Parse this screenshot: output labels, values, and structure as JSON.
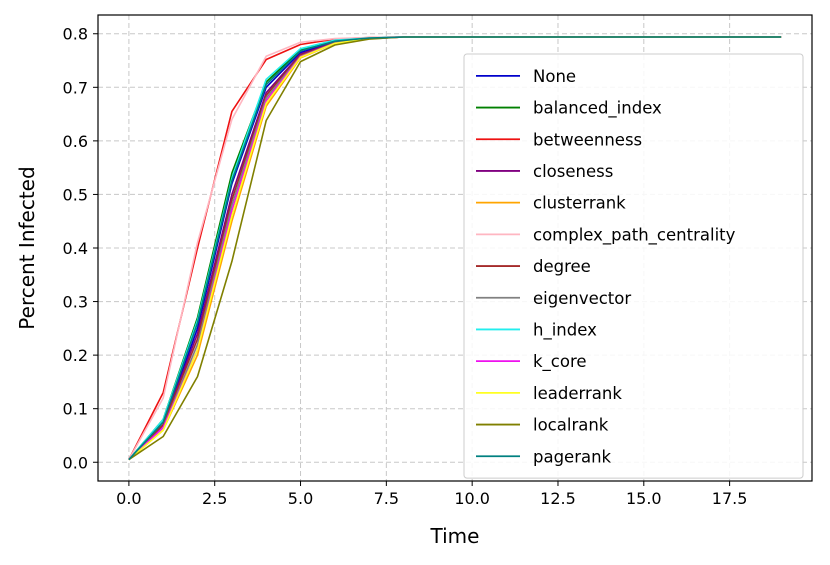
{
  "chart_data": {
    "type": "line",
    "title": "",
    "xlabel": "Time",
    "ylabel": "Percent Infected",
    "xlim": [
      -0.9,
      19.9
    ],
    "ylim": [
      -0.035,
      0.835
    ],
    "xticks": [
      0.0,
      2.5,
      5.0,
      7.5,
      10.0,
      12.5,
      15.0,
      17.5
    ],
    "xtick_labels": [
      "0.0",
      "2.5",
      "5.0",
      "7.5",
      "10.0",
      "12.5",
      "15.0",
      "17.5"
    ],
    "yticks": [
      0.0,
      0.1,
      0.2,
      0.3,
      0.4,
      0.5,
      0.6,
      0.7,
      0.8
    ],
    "ytick_labels": [
      "0.0",
      "0.1",
      "0.2",
      "0.3",
      "0.4",
      "0.5",
      "0.6",
      "0.7",
      "0.8"
    ],
    "grid": true,
    "legend_position": "right",
    "x": [
      0,
      1,
      2,
      3,
      4,
      5,
      6,
      7,
      8,
      9,
      10,
      11,
      12,
      13,
      14,
      15,
      16,
      17,
      18,
      19
    ],
    "series": [
      {
        "name": "None",
        "color": "#0000cc",
        "values": [
          0.005,
          0.07,
          0.25,
          0.52,
          0.7,
          0.765,
          0.785,
          0.792,
          0.794,
          0.794,
          0.794,
          0.794,
          0.794,
          0.794,
          0.794,
          0.794,
          0.794,
          0.794,
          0.794,
          0.794
        ]
      },
      {
        "name": "balanced_index",
        "color": "#008000",
        "values": [
          0.005,
          0.08,
          0.27,
          0.54,
          0.71,
          0.77,
          0.787,
          0.792,
          0.794,
          0.794,
          0.794,
          0.794,
          0.794,
          0.794,
          0.794,
          0.794,
          0.794,
          0.794,
          0.794,
          0.794
        ]
      },
      {
        "name": "betweenness",
        "color": "#ee1111",
        "values": [
          0.005,
          0.13,
          0.4,
          0.655,
          0.752,
          0.78,
          0.79,
          0.793,
          0.794,
          0.794,
          0.794,
          0.794,
          0.794,
          0.794,
          0.794,
          0.794,
          0.794,
          0.794,
          0.794,
          0.794
        ]
      },
      {
        "name": "closeness",
        "color": "#800080",
        "values": [
          0.005,
          0.07,
          0.24,
          0.5,
          0.69,
          0.762,
          0.784,
          0.791,
          0.794,
          0.794,
          0.794,
          0.794,
          0.794,
          0.794,
          0.794,
          0.794,
          0.794,
          0.794,
          0.794,
          0.794
        ]
      },
      {
        "name": "clusterrank",
        "color": "#ffa500",
        "values": [
          0.005,
          0.06,
          0.2,
          0.45,
          0.665,
          0.755,
          0.782,
          0.791,
          0.794,
          0.794,
          0.794,
          0.794,
          0.794,
          0.794,
          0.794,
          0.794,
          0.794,
          0.794,
          0.794,
          0.794
        ]
      },
      {
        "name": "complex_path_centrality",
        "color": "#ffb6c1",
        "values": [
          0.005,
          0.12,
          0.41,
          0.64,
          0.758,
          0.784,
          0.791,
          0.793,
          0.794,
          0.794,
          0.794,
          0.794,
          0.794,
          0.794,
          0.794,
          0.794,
          0.794,
          0.794,
          0.794,
          0.794
        ]
      },
      {
        "name": "degree",
        "color": "#a52a2a",
        "values": [
          0.005,
          0.07,
          0.23,
          0.49,
          0.685,
          0.76,
          0.783,
          0.791,
          0.794,
          0.794,
          0.794,
          0.794,
          0.794,
          0.794,
          0.794,
          0.794,
          0.794,
          0.794,
          0.794,
          0.794
        ]
      },
      {
        "name": "eigenvector",
        "color": "#808080",
        "values": [
          0.005,
          0.065,
          0.22,
          0.48,
          0.68,
          0.758,
          0.783,
          0.791,
          0.794,
          0.794,
          0.794,
          0.794,
          0.794,
          0.794,
          0.794,
          0.794,
          0.794,
          0.794,
          0.794,
          0.794
        ]
      },
      {
        "name": "h_index",
        "color": "#22eeee",
        "values": [
          0.005,
          0.08,
          0.265,
          0.53,
          0.715,
          0.772,
          0.788,
          0.792,
          0.794,
          0.794,
          0.794,
          0.794,
          0.794,
          0.794,
          0.794,
          0.794,
          0.794,
          0.794,
          0.794,
          0.794
        ]
      },
      {
        "name": "k_core",
        "color": "#ee11ee",
        "values": [
          0.005,
          0.065,
          0.21,
          0.47,
          0.675,
          0.757,
          0.782,
          0.791,
          0.794,
          0.794,
          0.794,
          0.794,
          0.794,
          0.794,
          0.794,
          0.794,
          0.794,
          0.794,
          0.794,
          0.794
        ]
      },
      {
        "name": "leaderrank",
        "color": "#ffff22",
        "values": [
          0.005,
          0.06,
          0.21,
          0.46,
          0.67,
          0.756,
          0.782,
          0.791,
          0.794,
          0.794,
          0.794,
          0.794,
          0.794,
          0.794,
          0.794,
          0.794,
          0.794,
          0.794,
          0.794,
          0.794
        ]
      },
      {
        "name": "localrank",
        "color": "#808000",
        "values": [
          0.005,
          0.048,
          0.16,
          0.375,
          0.638,
          0.748,
          0.779,
          0.79,
          0.794,
          0.794,
          0.794,
          0.794,
          0.794,
          0.794,
          0.794,
          0.794,
          0.794,
          0.794,
          0.794,
          0.794
        ]
      },
      {
        "name": "pagerank",
        "color": "#008080",
        "values": [
          0.005,
          0.075,
          0.26,
          0.525,
          0.705,
          0.768,
          0.786,
          0.792,
          0.794,
          0.794,
          0.794,
          0.794,
          0.794,
          0.794,
          0.794,
          0.794,
          0.794,
          0.794,
          0.794,
          0.794
        ]
      }
    ]
  }
}
